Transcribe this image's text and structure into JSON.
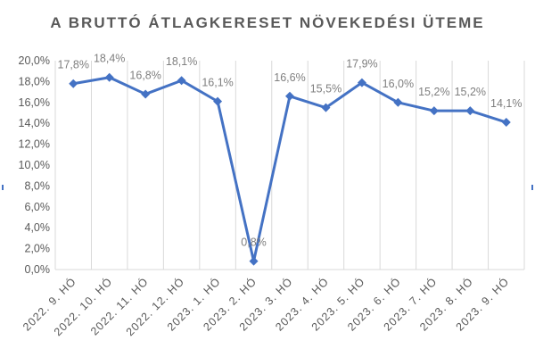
{
  "chart_data": {
    "type": "line",
    "title": "A BRUTTÓ ÁTLAGKERESET NÖVEKEDÉSI ÜTEME",
    "xlabel": "",
    "ylabel": "",
    "categories": [
      "2022. 9. HÓ",
      "2022. 10. HÓ",
      "2022. 11. HÓ",
      "2022. 12. HÓ",
      "2023. 1. HÓ",
      "2023. 2. HÓ",
      "2023. 3. HÓ",
      "2023. 4. HÓ",
      "2023. 5. HÓ",
      "2023. 6. HÓ",
      "2023. 7. HÓ",
      "2023. 8. HÓ",
      "2023. 9. HÓ"
    ],
    "series": [
      {
        "values": [
          17.8,
          18.4,
          16.8,
          18.1,
          16.1,
          0.8,
          16.6,
          15.5,
          17.9,
          16.0,
          15.2,
          15.2,
          14.1
        ],
        "labels": [
          "17,8%",
          "18,4%",
          "16,8%",
          "18,1%",
          "16,1%",
          "0,8%",
          "16,6%",
          "15,5%",
          "17,9%",
          "16,0%",
          "15,2%",
          "15,2%",
          "14,1%"
        ]
      }
    ],
    "ylim": [
      0,
      20
    ],
    "y_ticks": [
      "0,0%",
      "2,0%",
      "4,0%",
      "6,0%",
      "8,0%",
      "10,0%",
      "12,0%",
      "14,0%",
      "16,0%",
      "18,0%",
      "20,0%"
    ],
    "grid": "vertical",
    "legend": "none",
    "colors": {
      "line": "#4472c4",
      "grid": "#d9d9d9",
      "text": "#595959",
      "data_label": "#7f7f7f"
    }
  }
}
